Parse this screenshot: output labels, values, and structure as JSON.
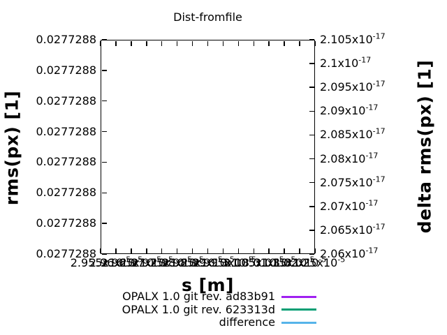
{
  "chart_data": {
    "type": "line",
    "title": "Dist-fromfile",
    "xlabel": "s [m]",
    "ylabel_left": "rms(px) [1]",
    "ylabel_right": "delta rms(px) [1]",
    "grid": false,
    "plot_area_empty": true,
    "legend_position": "bottom-right-below-plot",
    "x_axis": {
      "tick_labels": [
        "2.955x10^-5",
        "2.96x10^-5",
        "2.965x10^-5",
        "2.97x10^-5",
        "2.975x10^-5",
        "2.98x10^-5",
        "2.985x10^-5",
        "2.99x10^-5",
        "2.995x10^-5",
        "3x10^-5",
        "3.005x10^-5",
        "3.01x10^-5",
        "3.015x10^-5",
        "3.02x10^-5",
        "3.025x10^-5"
      ],
      "range_approx": [
        2.955e-05,
        3.025e-05
      ],
      "labels_overlap": true
    },
    "y_axis_left": {
      "tick_labels": [
        "0.0277288",
        "0.0277288",
        "0.0277288",
        "0.0277288",
        "0.0277288",
        "0.0277288",
        "0.0277288",
        "0.0277288"
      ],
      "constant_value": 0.0277288
    },
    "y_axis_right": {
      "tick_labels": [
        "2.105x10^-17",
        "2.1x10^-17",
        "2.095x10^-17",
        "2.09x10^-17",
        "2.085x10^-17",
        "2.08x10^-17",
        "2.075x10^-17",
        "2.07x10^-17",
        "2.065x10^-17",
        "2.06x10^-17"
      ],
      "range": [
        2.06e-17,
        2.105e-17
      ]
    },
    "series": [
      {
        "name": "OPALX 1.0 git rev. ad83b91",
        "color": "#A020F0",
        "values": []
      },
      {
        "name": "OPALX 1.0 git rev. 623313d",
        "color": "#009E73",
        "values": []
      },
      {
        "name": "difference",
        "color": "#56B4E9",
        "values": []
      }
    ]
  },
  "colors": {
    "background": "#FFFFFF",
    "foreground": "#000000"
  }
}
